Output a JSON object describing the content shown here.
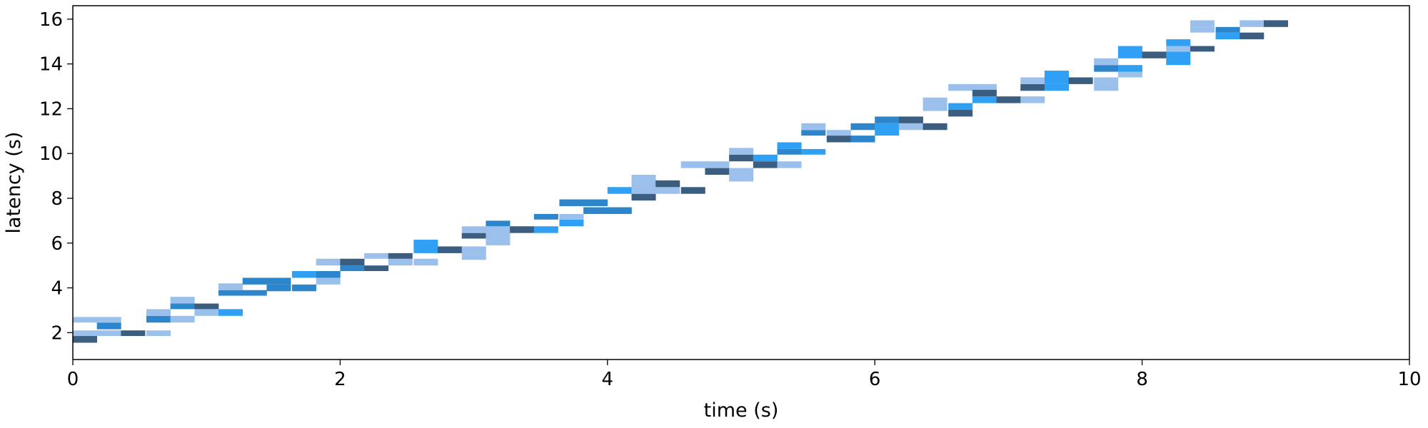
{
  "chart_data": {
    "type": "heatmap",
    "title": "",
    "xlabel": "time (s)",
    "ylabel": "latency (s)",
    "xlim": [
      0,
      10
    ],
    "ylim": [
      0.8,
      16.6
    ],
    "xticks": [
      0,
      2,
      4,
      6,
      8,
      10
    ],
    "yticks": [
      2,
      4,
      6,
      8,
      10,
      12,
      14,
      16
    ],
    "xtick_labels": [
      "0",
      "2",
      "4",
      "6",
      "8",
      "10"
    ],
    "ytick_labels": [
      "2",
      "4",
      "6",
      "8",
      "10",
      "12",
      "14",
      "16"
    ],
    "grid": false,
    "bin_width_s": 0.1818,
    "color_levels": {
      "light": "#9cc0ec",
      "bright": "#2fa0f3",
      "medium": "#2d86cb",
      "dark": "#3a5d80"
    },
    "cells": [
      {
        "x0": 0.0,
        "y0": 1.55,
        "y1": 1.85,
        "c": "dark"
      },
      {
        "x0": 0.0,
        "y0": 1.85,
        "y1": 2.1,
        "c": "light"
      },
      {
        "x0": 0.0,
        "y0": 2.45,
        "y1": 2.7,
        "c": "light"
      },
      {
        "x0": 0.18,
        "y0": 1.85,
        "y1": 2.1,
        "c": "light"
      },
      {
        "x0": 0.18,
        "y0": 2.15,
        "y1": 2.45,
        "c": "medium"
      },
      {
        "x0": 0.18,
        "y0": 2.45,
        "y1": 2.7,
        "c": "light"
      },
      {
        "x0": 0.36,
        "y0": 1.85,
        "y1": 2.1,
        "c": "dark"
      },
      {
        "x0": 0.55,
        "y0": 1.85,
        "y1": 2.1,
        "c": "light"
      },
      {
        "x0": 0.55,
        "y0": 2.45,
        "y1": 2.75,
        "c": "medium"
      },
      {
        "x0": 0.55,
        "y0": 2.75,
        "y1": 3.05,
        "c": "light"
      },
      {
        "x0": 0.73,
        "y0": 2.45,
        "y1": 2.75,
        "c": "light"
      },
      {
        "x0": 0.73,
        "y0": 3.05,
        "y1": 3.3,
        "c": "medium"
      },
      {
        "x0": 0.73,
        "y0": 3.3,
        "y1": 3.6,
        "c": "light"
      },
      {
        "x0": 0.91,
        "y0": 2.75,
        "y1": 3.05,
        "c": "light"
      },
      {
        "x0": 0.91,
        "y0": 3.05,
        "y1": 3.3,
        "c": "dark"
      },
      {
        "x0": 1.09,
        "y0": 2.75,
        "y1": 3.05,
        "c": "bright"
      },
      {
        "x0": 1.09,
        "y0": 3.65,
        "y1": 3.9,
        "c": "medium"
      },
      {
        "x0": 1.09,
        "y0": 3.9,
        "y1": 4.2,
        "c": "light"
      },
      {
        "x0": 1.27,
        "y0": 3.65,
        "y1": 3.9,
        "c": "medium"
      },
      {
        "x0": 1.27,
        "y0": 4.15,
        "y1": 4.45,
        "c": "medium"
      },
      {
        "x0": 1.45,
        "y0": 3.85,
        "y1": 4.15,
        "c": "medium"
      },
      {
        "x0": 1.45,
        "y0": 4.15,
        "y1": 4.45,
        "c": "medium"
      },
      {
        "x0": 1.64,
        "y0": 3.85,
        "y1": 4.15,
        "c": "medium"
      },
      {
        "x0": 1.64,
        "y0": 4.45,
        "y1": 4.75,
        "c": "bright"
      },
      {
        "x0": 1.82,
        "y0": 4.15,
        "y1": 4.45,
        "c": "light"
      },
      {
        "x0": 1.82,
        "y0": 4.45,
        "y1": 4.75,
        "c": "medium"
      },
      {
        "x0": 1.82,
        "y0": 5.0,
        "y1": 5.3,
        "c": "light"
      },
      {
        "x0": 2.0,
        "y0": 4.75,
        "y1": 5.0,
        "c": "medium"
      },
      {
        "x0": 2.0,
        "y0": 5.0,
        "y1": 5.3,
        "c": "dark"
      },
      {
        "x0": 2.18,
        "y0": 4.75,
        "y1": 5.0,
        "c": "dark"
      },
      {
        "x0": 2.18,
        "y0": 5.3,
        "y1": 5.55,
        "c": "light"
      },
      {
        "x0": 2.36,
        "y0": 5.0,
        "y1": 5.3,
        "c": "light"
      },
      {
        "x0": 2.36,
        "y0": 5.3,
        "y1": 5.55,
        "c": "dark"
      },
      {
        "x0": 2.55,
        "y0": 5.0,
        "y1": 5.3,
        "c": "light"
      },
      {
        "x0": 2.55,
        "y0": 5.55,
        "y1": 6.15,
        "c": "bright"
      },
      {
        "x0": 2.73,
        "y0": 5.55,
        "y1": 5.85,
        "c": "dark"
      },
      {
        "x0": 2.91,
        "y0": 5.25,
        "y1": 5.85,
        "c": "light"
      },
      {
        "x0": 2.91,
        "y0": 6.2,
        "y1": 6.45,
        "c": "dark"
      },
      {
        "x0": 2.91,
        "y0": 6.45,
        "y1": 6.75,
        "c": "light"
      },
      {
        "x0": 3.09,
        "y0": 5.9,
        "y1": 6.2,
        "c": "light"
      },
      {
        "x0": 3.09,
        "y0": 6.2,
        "y1": 6.75,
        "c": "light"
      },
      {
        "x0": 3.09,
        "y0": 6.75,
        "y1": 7.0,
        "c": "medium"
      },
      {
        "x0": 3.27,
        "y0": 6.45,
        "y1": 6.75,
        "c": "dark"
      },
      {
        "x0": 3.45,
        "y0": 6.45,
        "y1": 6.75,
        "c": "bright"
      },
      {
        "x0": 3.45,
        "y0": 7.05,
        "y1": 7.3,
        "c": "medium"
      },
      {
        "x0": 3.64,
        "y0": 6.75,
        "y1": 7.05,
        "c": "bright"
      },
      {
        "x0": 3.64,
        "y0": 7.05,
        "y1": 7.3,
        "c": "light"
      },
      {
        "x0": 3.64,
        "y0": 7.65,
        "y1": 7.95,
        "c": "medium"
      },
      {
        "x0": 3.82,
        "y0": 7.3,
        "y1": 7.6,
        "c": "medium"
      },
      {
        "x0": 3.82,
        "y0": 7.65,
        "y1": 7.95,
        "c": "medium"
      },
      {
        "x0": 4.0,
        "y0": 7.3,
        "y1": 7.6,
        "c": "medium"
      },
      {
        "x0": 4.0,
        "y0": 8.2,
        "y1": 8.5,
        "c": "bright"
      },
      {
        "x0": 4.18,
        "y0": 7.9,
        "y1": 8.2,
        "c": "dark"
      },
      {
        "x0": 4.18,
        "y0": 8.2,
        "y1": 9.05,
        "c": "light"
      },
      {
        "x0": 4.36,
        "y0": 8.2,
        "y1": 8.5,
        "c": "light"
      },
      {
        "x0": 4.36,
        "y0": 8.5,
        "y1": 8.8,
        "c": "dark"
      },
      {
        "x0": 4.55,
        "y0": 8.2,
        "y1": 8.5,
        "c": "dark"
      },
      {
        "x0": 4.55,
        "y0": 9.35,
        "y1": 9.65,
        "c": "light"
      },
      {
        "x0": 4.73,
        "y0": 9.05,
        "y1": 9.35,
        "c": "dark"
      },
      {
        "x0": 4.73,
        "y0": 9.35,
        "y1": 9.65,
        "c": "light"
      },
      {
        "x0": 4.91,
        "y0": 8.75,
        "y1": 9.35,
        "c": "light"
      },
      {
        "x0": 4.91,
        "y0": 9.65,
        "y1": 9.95,
        "c": "dark"
      },
      {
        "x0": 4.91,
        "y0": 9.95,
        "y1": 10.25,
        "c": "light"
      },
      {
        "x0": 5.09,
        "y0": 9.35,
        "y1": 9.65,
        "c": "dark"
      },
      {
        "x0": 5.09,
        "y0": 9.65,
        "y1": 9.95,
        "c": "bright"
      },
      {
        "x0": 5.27,
        "y0": 9.35,
        "y1": 9.65,
        "c": "light"
      },
      {
        "x0": 5.27,
        "y0": 9.95,
        "y1": 10.2,
        "c": "medium"
      },
      {
        "x0": 5.27,
        "y0": 10.2,
        "y1": 10.5,
        "c": "bright"
      },
      {
        "x0": 5.45,
        "y0": 9.95,
        "y1": 10.2,
        "c": "bright"
      },
      {
        "x0": 5.45,
        "y0": 10.8,
        "y1": 11.05,
        "c": "medium"
      },
      {
        "x0": 5.45,
        "y0": 11.05,
        "y1": 11.35,
        "c": "light"
      },
      {
        "x0": 5.64,
        "y0": 10.5,
        "y1": 10.8,
        "c": "dark"
      },
      {
        "x0": 5.64,
        "y0": 10.8,
        "y1": 11.05,
        "c": "light"
      },
      {
        "x0": 5.82,
        "y0": 10.5,
        "y1": 10.8,
        "c": "medium"
      },
      {
        "x0": 5.82,
        "y0": 11.05,
        "y1": 11.35,
        "c": "medium"
      },
      {
        "x0": 6.0,
        "y0": 10.8,
        "y1": 11.35,
        "c": "bright"
      },
      {
        "x0": 6.0,
        "y0": 11.35,
        "y1": 11.65,
        "c": "medium"
      },
      {
        "x0": 6.18,
        "y0": 11.05,
        "y1": 11.35,
        "c": "light"
      },
      {
        "x0": 6.18,
        "y0": 11.35,
        "y1": 11.65,
        "c": "dark"
      },
      {
        "x0": 6.36,
        "y0": 11.05,
        "y1": 11.35,
        "c": "dark"
      },
      {
        "x0": 6.36,
        "y0": 11.9,
        "y1": 12.5,
        "c": "light"
      },
      {
        "x0": 6.55,
        "y0": 11.65,
        "y1": 11.95,
        "c": "dark"
      },
      {
        "x0": 6.55,
        "y0": 11.95,
        "y1": 12.25,
        "c": "bright"
      },
      {
        "x0": 6.55,
        "y0": 12.8,
        "y1": 13.1,
        "c": "light"
      },
      {
        "x0": 6.73,
        "y0": 12.25,
        "y1": 12.55,
        "c": "bright"
      },
      {
        "x0": 6.73,
        "y0": 12.55,
        "y1": 12.85,
        "c": "dark"
      },
      {
        "x0": 6.73,
        "y0": 12.85,
        "y1": 13.1,
        "c": "light"
      },
      {
        "x0": 6.91,
        "y0": 12.25,
        "y1": 12.55,
        "c": "dark"
      },
      {
        "x0": 7.09,
        "y0": 12.25,
        "y1": 12.55,
        "c": "light"
      },
      {
        "x0": 7.09,
        "y0": 12.8,
        "y1": 13.1,
        "c": "dark"
      },
      {
        "x0": 7.09,
        "y0": 13.1,
        "y1": 13.4,
        "c": "light"
      },
      {
        "x0": 7.27,
        "y0": 12.8,
        "y1": 13.1,
        "c": "bright"
      },
      {
        "x0": 7.27,
        "y0": 13.1,
        "y1": 13.7,
        "c": "bright"
      },
      {
        "x0": 7.45,
        "y0": 13.1,
        "y1": 13.4,
        "c": "dark"
      },
      {
        "x0": 7.64,
        "y0": 12.8,
        "y1": 13.4,
        "c": "light"
      },
      {
        "x0": 7.64,
        "y0": 13.65,
        "y1": 13.95,
        "c": "medium"
      },
      {
        "x0": 7.64,
        "y0": 13.95,
        "y1": 14.25,
        "c": "light"
      },
      {
        "x0": 7.82,
        "y0": 13.4,
        "y1": 13.65,
        "c": "light"
      },
      {
        "x0": 7.82,
        "y0": 13.65,
        "y1": 13.95,
        "c": "bright"
      },
      {
        "x0": 7.82,
        "y0": 14.25,
        "y1": 14.8,
        "c": "bright"
      },
      {
        "x0": 8.0,
        "y0": 14.25,
        "y1": 14.55,
        "c": "dark"
      },
      {
        "x0": 8.18,
        "y0": 13.95,
        "y1": 14.55,
        "c": "bright"
      },
      {
        "x0": 8.18,
        "y0": 14.55,
        "y1": 14.8,
        "c": "light"
      },
      {
        "x0": 8.18,
        "y0": 14.8,
        "y1": 15.1,
        "c": "bright"
      },
      {
        "x0": 8.36,
        "y0": 14.55,
        "y1": 14.8,
        "c": "dark"
      },
      {
        "x0": 8.36,
        "y0": 15.4,
        "y1": 15.65,
        "c": "light"
      },
      {
        "x0": 8.36,
        "y0": 15.65,
        "y1": 15.95,
        "c": "light"
      },
      {
        "x0": 8.55,
        "y0": 15.1,
        "y1": 15.4,
        "c": "bright"
      },
      {
        "x0": 8.55,
        "y0": 15.4,
        "y1": 15.65,
        "c": "medium"
      },
      {
        "x0": 8.73,
        "y0": 15.1,
        "y1": 15.4,
        "c": "dark"
      },
      {
        "x0": 8.73,
        "y0": 15.65,
        "y1": 15.95,
        "c": "light"
      },
      {
        "x0": 8.91,
        "y0": 15.65,
        "y1": 15.95,
        "c": "dark"
      }
    ]
  }
}
